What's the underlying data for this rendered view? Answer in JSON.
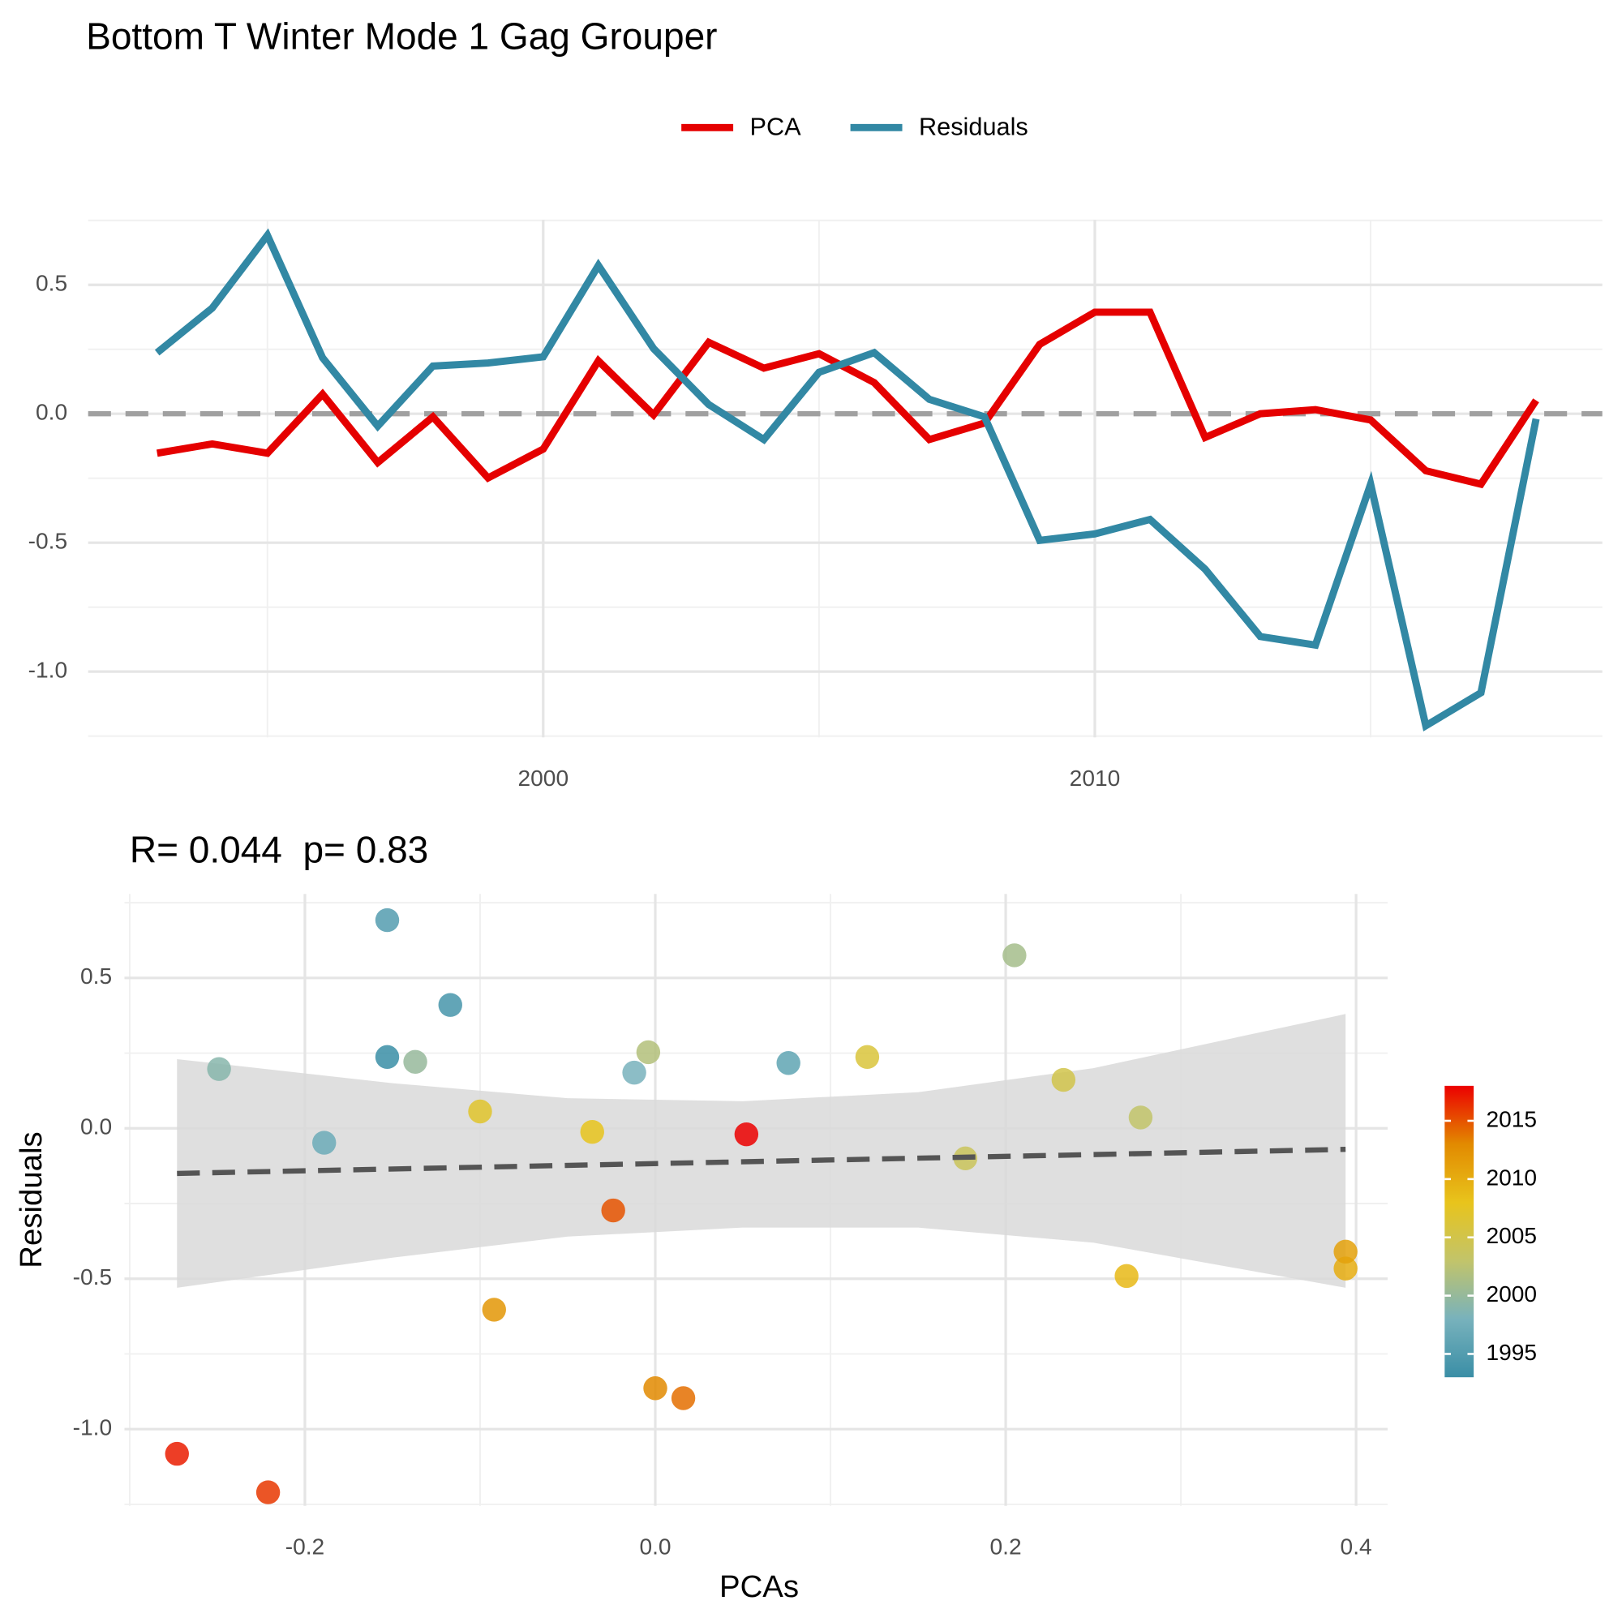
{
  "chart_data": [
    {
      "type": "line",
      "title": "Bottom T Winter Mode 1 Gag Grouper",
      "x": [
        1993,
        1994,
        1995,
        1996,
        1997,
        1998,
        1999,
        2000,
        2001,
        2002,
        2003,
        2004,
        2005,
        2006,
        2007,
        2008,
        2009,
        2010,
        2011,
        2012,
        2013,
        2014,
        2015,
        2016,
        2017,
        2018
      ],
      "series": [
        {
          "name": "PCA",
          "color": "#e50000",
          "values": [
            -0.153,
            -0.117,
            -0.153,
            0.076,
            -0.189,
            -0.012,
            -0.249,
            -0.137,
            0.205,
            -0.004,
            0.277,
            0.177,
            0.233,
            0.121,
            -0.1,
            -0.036,
            0.269,
            0.394,
            0.394,
            -0.092,
            0.0,
            0.016,
            -0.024,
            -0.221,
            -0.273,
            0.052
          ]
        },
        {
          "name": "Residuals",
          "color": "#3288a4",
          "values": [
            0.237,
            0.41,
            0.692,
            0.217,
            -0.048,
            0.185,
            0.197,
            0.221,
            0.575,
            0.253,
            0.036,
            -0.1,
            0.161,
            0.237,
            0.056,
            -0.012,
            -0.491,
            -0.466,
            -0.41,
            -0.603,
            -0.864,
            -0.897,
            -0.273,
            -1.21,
            -1.082,
            -0.02
          ]
        }
      ],
      "xlim": [
        1991.75,
        2019.2
      ],
      "xticks": [
        2000,
        2010
      ],
      "ylim": [
        -1.255,
        0.752
      ],
      "yticks": [
        0.5,
        {
          "value": 0,
          "label": "0.0"
        },
        -0.5,
        {
          "value": -1,
          "label": "-1.0"
        }
      ],
      "reference_line": 0,
      "grid": true,
      "legend": "top"
    },
    {
      "type": "scatter",
      "subtitle": "R= 0.044  p= 0.83",
      "xlabel": "PCAs",
      "ylabel": "Residuals",
      "x": [
        -0.153,
        -0.117,
        -0.153,
        0.076,
        -0.189,
        -0.012,
        -0.249,
        -0.137,
        0.205,
        -0.004,
        0.277,
        0.177,
        0.233,
        0.121,
        -0.1,
        -0.036,
        0.269,
        0.394,
        0.394,
        -0.092,
        0.0,
        0.016,
        -0.024,
        -0.221,
        -0.273,
        0.052
      ],
      "y": [
        0.237,
        0.41,
        0.692,
        0.217,
        -0.048,
        0.185,
        0.197,
        0.221,
        0.575,
        0.253,
        0.036,
        -0.1,
        0.161,
        0.237,
        0.056,
        -0.012,
        -0.491,
        -0.466,
        -0.41,
        -0.603,
        -0.864,
        -0.897,
        -0.273,
        -1.21,
        -1.082,
        -0.02
      ],
      "color_values": [
        1993,
        1994,
        1995,
        1996,
        1997,
        1998,
        1999,
        2000,
        2001,
        2002,
        2003,
        2004,
        2005,
        2006,
        2007,
        2008,
        2009,
        2010,
        2011,
        2012,
        2013,
        2014,
        2015,
        2016,
        2017,
        2018
      ],
      "fit": {
        "x": [
          -0.273,
          0.394
        ],
        "y": [
          -0.15,
          -0.07
        ],
        "color": "#555555"
      },
      "band": {
        "x": [
          -0.273,
          -0.15,
          -0.05,
          0.05,
          0.15,
          0.25,
          0.394
        ],
        "lower": [
          -0.53,
          -0.43,
          -0.36,
          -0.33,
          -0.33,
          -0.38,
          -0.53
        ],
        "upper": [
          0.23,
          0.15,
          0.1,
          0.09,
          0.12,
          0.2,
          0.38
        ],
        "color": "#d9d9d9"
      },
      "xlim": [
        -0.303,
        0.418
      ],
      "xticks": [
        -0.2,
        {
          "value": 0,
          "label": "0.0"
        },
        0.2,
        0.4
      ],
      "ylim": [
        -1.255,
        0.779
      ],
      "yticks": [
        0.5,
        {
          "value": 0,
          "label": "0.0"
        },
        -0.5,
        {
          "value": -1,
          "label": "-1.0"
        }
      ],
      "grid": true,
      "colorbar": {
        "lim": [
          1993,
          2018
        ],
        "ticks": [
          1995,
          2000,
          2005,
          2010,
          2015
        ],
        "colors": [
          "#3a8ea6",
          "#78b2bc",
          "#c2c46a",
          "#e8c41c",
          "#e28a00",
          "#ec0000"
        ]
      }
    }
  ]
}
